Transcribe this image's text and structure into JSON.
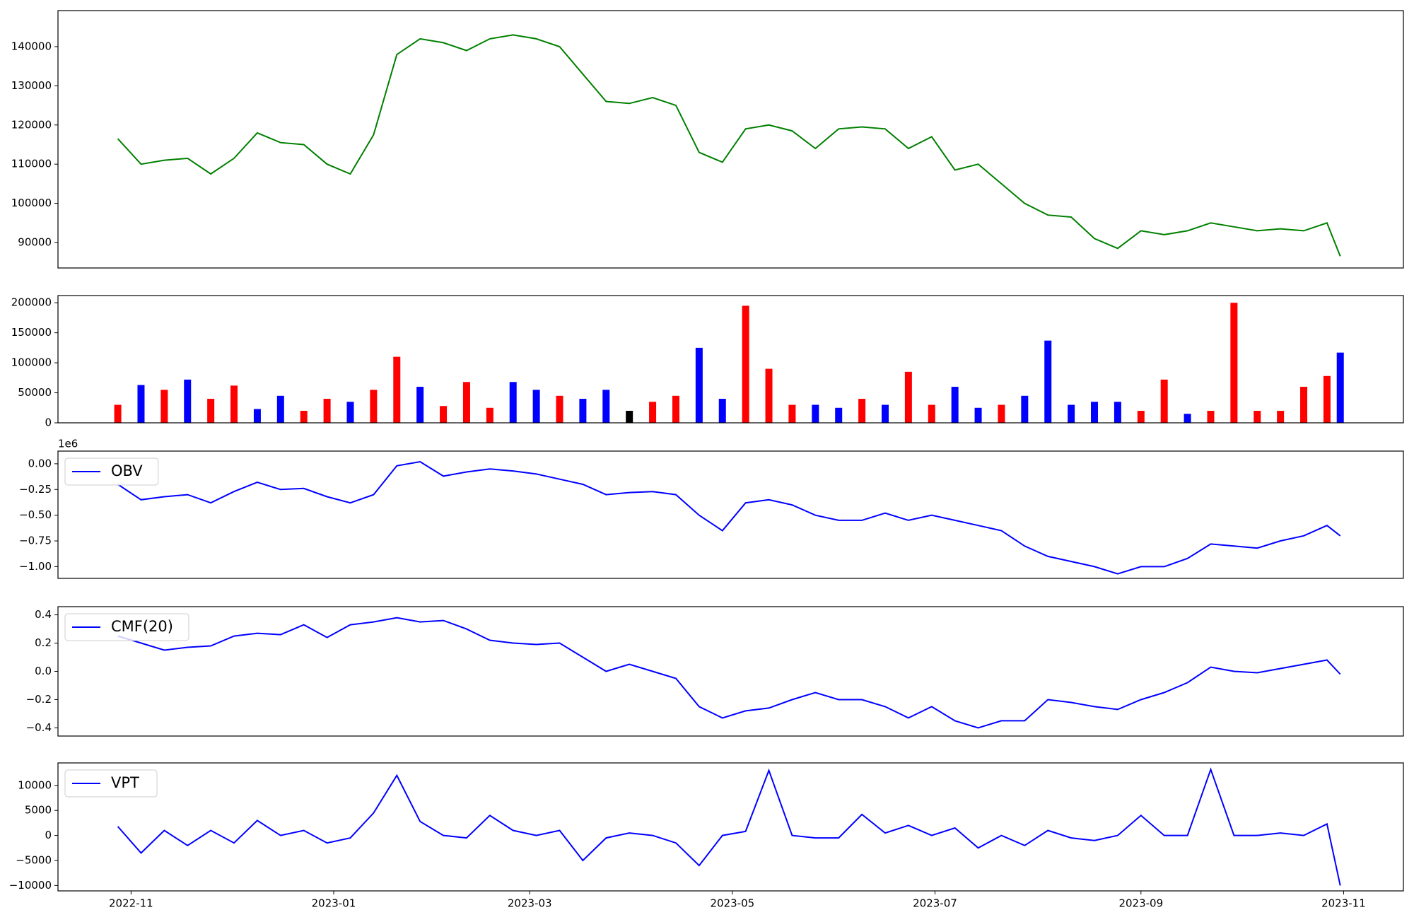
{
  "chart_data": [
    {
      "type": "line",
      "xlim": [
        "2022-10-10",
        "2023-11-19"
      ],
      "ylim": [
        83500,
        149200
      ],
      "yticks": [
        90000,
        100000,
        110000,
        120000,
        130000,
        140000
      ],
      "x": [
        "2022-10-28",
        "2022-11-04",
        "2022-11-11",
        "2022-11-18",
        "2022-11-25",
        "2022-12-02",
        "2022-12-09",
        "2022-12-16",
        "2022-12-23",
        "2022-12-30",
        "2023-01-06",
        "2023-01-13",
        "2023-01-20",
        "2023-01-27",
        "2023-02-03",
        "2023-02-10",
        "2023-02-17",
        "2023-02-24",
        "2023-03-03",
        "2023-03-10",
        "2023-03-17",
        "2023-03-24",
        "2023-03-31",
        "2023-04-07",
        "2023-04-14",
        "2023-04-21",
        "2023-04-28",
        "2023-05-05",
        "2023-05-12",
        "2023-05-19",
        "2023-05-26",
        "2023-06-02",
        "2023-06-09",
        "2023-06-16",
        "2023-06-23",
        "2023-06-30",
        "2023-07-07",
        "2023-07-14",
        "2023-07-21",
        "2023-07-28",
        "2023-08-04",
        "2023-08-11",
        "2023-08-18",
        "2023-08-25",
        "2023-09-01",
        "2023-09-08",
        "2023-09-15",
        "2023-09-22",
        "2023-09-29",
        "2023-10-06",
        "2023-10-13",
        "2023-10-20",
        "2023-10-27",
        "2023-10-31"
      ],
      "series": [
        {
          "color": "green",
          "values": [
            116500,
            110000,
            111000,
            111500,
            107500,
            111500,
            118000,
            115500,
            115000,
            110000,
            107500,
            117500,
            138000,
            142000,
            141000,
            139000,
            142000,
            143000,
            142000,
            140000,
            133000,
            126000,
            125500,
            127000,
            125000,
            113000,
            110500,
            119000,
            120000,
            118500,
            114000,
            119000,
            119500,
            119000,
            114000,
            117000,
            108500,
            110000,
            105000,
            100000,
            97000,
            96500,
            91000,
            88500,
            93000,
            92000,
            93000,
            95000,
            94000,
            93000,
            93500,
            93000,
            95000,
            86500
          ]
        }
      ]
    },
    {
      "type": "bar",
      "xlim": [
        "2022-10-10",
        "2023-11-19"
      ],
      "ylim": [
        0,
        212000
      ],
      "yticks": [
        0,
        50000,
        100000,
        150000,
        200000
      ],
      "x": [
        "2022-10-28",
        "2022-11-04",
        "2022-11-11",
        "2022-11-18",
        "2022-11-25",
        "2022-12-02",
        "2022-12-09",
        "2022-12-16",
        "2022-12-23",
        "2022-12-30",
        "2023-01-06",
        "2023-01-13",
        "2023-01-20",
        "2023-01-27",
        "2023-02-03",
        "2023-02-10",
        "2023-02-17",
        "2023-02-24",
        "2023-03-03",
        "2023-03-10",
        "2023-03-17",
        "2023-03-24",
        "2023-03-31",
        "2023-04-07",
        "2023-04-14",
        "2023-04-21",
        "2023-04-28",
        "2023-05-05",
        "2023-05-12",
        "2023-05-19",
        "2023-05-26",
        "2023-06-02",
        "2023-06-09",
        "2023-06-16",
        "2023-06-23",
        "2023-06-30",
        "2023-07-07",
        "2023-07-14",
        "2023-07-21",
        "2023-07-28",
        "2023-08-04",
        "2023-08-11",
        "2023-08-18",
        "2023-08-25",
        "2023-09-01",
        "2023-09-08",
        "2023-09-15",
        "2023-09-22",
        "2023-09-29",
        "2023-10-06",
        "2023-10-13",
        "2023-10-20",
        "2023-10-27",
        "2023-10-31"
      ],
      "series": [
        {
          "colors": [
            "red",
            "blue",
            "red",
            "blue",
            "red",
            "red",
            "blue",
            "blue",
            "red",
            "red",
            "blue",
            "red",
            "red",
            "blue",
            "red",
            "red",
            "red",
            "blue",
            "blue",
            "red",
            "blue",
            "blue",
            "black",
            "red",
            "red",
            "blue",
            "blue",
            "red",
            "red",
            "red",
            "blue",
            "blue",
            "red",
            "blue",
            "red",
            "red",
            "blue",
            "blue",
            "red",
            "blue",
            "blue",
            "blue",
            "blue",
            "blue",
            "red",
            "red",
            "blue",
            "red",
            "red",
            "red",
            "red",
            "red",
            "red",
            "blue"
          ],
          "values": [
            30000,
            63000,
            55000,
            72000,
            40000,
            62000,
            23000,
            45000,
            20000,
            40000,
            35000,
            55000,
            110000,
            60000,
            28000,
            68000,
            25000,
            68000,
            55000,
            45000,
            40000,
            55000,
            20000,
            35000,
            45000,
            125000,
            40000,
            195000,
            90000,
            30000,
            30000,
            25000,
            40000,
            30000,
            85000,
            30000,
            60000,
            25000,
            30000,
            45000,
            137000,
            30000,
            35000,
            35000,
            20000,
            72000,
            15000,
            20000,
            200000,
            20000,
            20000,
            60000,
            78000,
            117000
          ]
        }
      ]
    },
    {
      "type": "line",
      "xlim": [
        "2022-10-10",
        "2023-11-19"
      ],
      "ylim": [
        -1.114,
        0.123
      ],
      "offset_text": "1e6",
      "legend": "upper left",
      "yticks": [
        {
          "value": -1,
          "label": "−1.00"
        },
        {
          "value": -0.75,
          "label": "−0.75"
        },
        {
          "value": -0.5,
          "label": "−0.50"
        },
        {
          "value": -0.25,
          "label": "−0.25"
        },
        {
          "value": 0,
          "label": "0.00"
        }
      ],
      "x": [
        "2022-10-28",
        "2022-11-04",
        "2022-11-11",
        "2022-11-18",
        "2022-11-25",
        "2022-12-02",
        "2022-12-09",
        "2022-12-16",
        "2022-12-23",
        "2022-12-30",
        "2023-01-06",
        "2023-01-13",
        "2023-01-20",
        "2023-01-27",
        "2023-02-03",
        "2023-02-10",
        "2023-02-17",
        "2023-02-24",
        "2023-03-03",
        "2023-03-10",
        "2023-03-17",
        "2023-03-24",
        "2023-03-31",
        "2023-04-07",
        "2023-04-14",
        "2023-04-21",
        "2023-04-28",
        "2023-05-05",
        "2023-05-12",
        "2023-05-19",
        "2023-05-26",
        "2023-06-02",
        "2023-06-09",
        "2023-06-16",
        "2023-06-23",
        "2023-06-30",
        "2023-07-07",
        "2023-07-14",
        "2023-07-21",
        "2023-07-28",
        "2023-08-04",
        "2023-08-11",
        "2023-08-18",
        "2023-08-25",
        "2023-09-01",
        "2023-09-08",
        "2023-09-15",
        "2023-09-22",
        "2023-09-29",
        "2023-10-06",
        "2023-10-13",
        "2023-10-20",
        "2023-10-27",
        "2023-10-31"
      ],
      "series": [
        {
          "name": "OBV",
          "color": "blue",
          "values": [
            -0.2,
            -0.35,
            -0.32,
            -0.3,
            -0.38,
            -0.27,
            -0.18,
            -0.25,
            -0.24,
            -0.32,
            -0.38,
            -0.3,
            -0.02,
            0.02,
            -0.12,
            -0.08,
            -0.05,
            -0.07,
            -0.1,
            -0.15,
            -0.2,
            -0.3,
            -0.28,
            -0.27,
            -0.3,
            -0.5,
            -0.65,
            -0.38,
            -0.35,
            -0.4,
            -0.5,
            -0.55,
            -0.55,
            -0.48,
            -0.55,
            -0.5,
            -0.55,
            -0.6,
            -0.65,
            -0.8,
            -0.9,
            -0.95,
            -1.0,
            -1.07,
            -1.0,
            -1.0,
            -0.92,
            -0.78,
            -0.8,
            -0.82,
            -0.75,
            -0.7,
            -0.6,
            -0.7
          ]
        }
      ]
    },
    {
      "type": "line",
      "xlim": [
        "2022-10-10",
        "2023-11-19"
      ],
      "ylim": [
        -0.458,
        0.458
      ],
      "legend": "upper left",
      "yticks": [
        {
          "value": -0.4,
          "label": "−0.4"
        },
        {
          "value": -0.2,
          "label": "−0.2"
        },
        {
          "value": 0,
          "label": "0.0"
        },
        0.2,
        0.4
      ],
      "x": [
        "2022-10-28",
        "2022-11-04",
        "2022-11-11",
        "2022-11-18",
        "2022-11-25",
        "2022-12-02",
        "2022-12-09",
        "2022-12-16",
        "2022-12-23",
        "2022-12-30",
        "2023-01-06",
        "2023-01-13",
        "2023-01-20",
        "2023-01-27",
        "2023-02-03",
        "2023-02-10",
        "2023-02-17",
        "2023-02-24",
        "2023-03-03",
        "2023-03-10",
        "2023-03-17",
        "2023-03-24",
        "2023-03-31",
        "2023-04-07",
        "2023-04-14",
        "2023-04-21",
        "2023-04-28",
        "2023-05-05",
        "2023-05-12",
        "2023-05-19",
        "2023-05-26",
        "2023-06-02",
        "2023-06-09",
        "2023-06-16",
        "2023-06-23",
        "2023-06-30",
        "2023-07-07",
        "2023-07-14",
        "2023-07-21",
        "2023-07-28",
        "2023-08-04",
        "2023-08-11",
        "2023-08-18",
        "2023-08-25",
        "2023-09-01",
        "2023-09-08",
        "2023-09-15",
        "2023-09-22",
        "2023-09-29",
        "2023-10-06",
        "2023-10-13",
        "2023-10-20",
        "2023-10-27",
        "2023-10-31"
      ],
      "series": [
        {
          "name": "CMF(20)",
          "color": "blue",
          "values": [
            0.25,
            0.2,
            0.15,
            0.17,
            0.18,
            0.25,
            0.27,
            0.26,
            0.33,
            0.24,
            0.33,
            0.35,
            0.38,
            0.35,
            0.36,
            0.3,
            0.22,
            0.2,
            0.19,
            0.2,
            0.1,
            0.0,
            0.05,
            0.0,
            -0.05,
            -0.25,
            -0.33,
            -0.28,
            -0.26,
            -0.2,
            -0.15,
            -0.2,
            -0.2,
            -0.25,
            -0.33,
            -0.25,
            -0.35,
            -0.4,
            -0.35,
            -0.35,
            -0.2,
            -0.22,
            -0.25,
            -0.27,
            -0.2,
            -0.15,
            -0.08,
            0.03,
            0.0,
            -0.01,
            0.02,
            0.05,
            0.08,
            -0.02
          ]
        }
      ]
    },
    {
      "type": "line",
      "xlim": [
        "2022-10-10",
        "2023-11-19"
      ],
      "ylim": [
        -11080,
        14500
      ],
      "legend": "upper left",
      "yticks": [
        {
          "value": -10000,
          "label": "−10000"
        },
        {
          "value": -5000,
          "label": "−5000"
        },
        0,
        5000,
        10000
      ],
      "xticks": [
        {
          "value": "2022-11-01",
          "label": "2022-11"
        },
        {
          "value": "2023-01-01",
          "label": "2023-01"
        },
        {
          "value": "2023-03-01",
          "label": "2023-03"
        },
        {
          "value": "2023-05-01",
          "label": "2023-05"
        },
        {
          "value": "2023-07-01",
          "label": "2023-07"
        },
        {
          "value": "2023-09-01",
          "label": "2023-09"
        },
        {
          "value": "2023-11-01",
          "label": "2023-11"
        }
      ],
      "x": [
        "2022-10-28",
        "2022-11-04",
        "2022-11-11",
        "2022-11-18",
        "2022-11-25",
        "2022-12-02",
        "2022-12-09",
        "2022-12-16",
        "2022-12-23",
        "2022-12-30",
        "2023-01-06",
        "2023-01-13",
        "2023-01-20",
        "2023-01-27",
        "2023-02-03",
        "2023-02-10",
        "2023-02-17",
        "2023-02-24",
        "2023-03-03",
        "2023-03-10",
        "2023-03-17",
        "2023-03-24",
        "2023-03-31",
        "2023-04-07",
        "2023-04-14",
        "2023-04-21",
        "2023-04-28",
        "2023-05-05",
        "2023-05-12",
        "2023-05-19",
        "2023-05-26",
        "2023-06-02",
        "2023-06-09",
        "2023-06-16",
        "2023-06-23",
        "2023-06-30",
        "2023-07-07",
        "2023-07-14",
        "2023-07-21",
        "2023-07-28",
        "2023-08-04",
        "2023-08-11",
        "2023-08-18",
        "2023-08-25",
        "2023-09-01",
        "2023-09-08",
        "2023-09-15",
        "2023-09-22",
        "2023-09-29",
        "2023-10-06",
        "2023-10-13",
        "2023-10-20",
        "2023-10-27",
        "2023-10-31"
      ],
      "series": [
        {
          "name": "VPT",
          "color": "blue",
          "values": [
            1800,
            -3500,
            1000,
            -2000,
            1000,
            -1500,
            3000,
            0,
            1000,
            -1500,
            -500,
            4500,
            12000,
            2800,
            0,
            -500,
            4000,
            1000,
            0,
            1000,
            -5000,
            -500,
            500,
            0,
            -1500,
            -6000,
            0,
            800,
            13000,
            0,
            -500,
            -500,
            4200,
            500,
            2000,
            0,
            1500,
            -2500,
            0,
            -2000,
            1000,
            -500,
            -1000,
            0,
            4000,
            0,
            0,
            13200,
            0,
            0,
            500,
            0,
            2300,
            -10000
          ]
        }
      ]
    }
  ]
}
